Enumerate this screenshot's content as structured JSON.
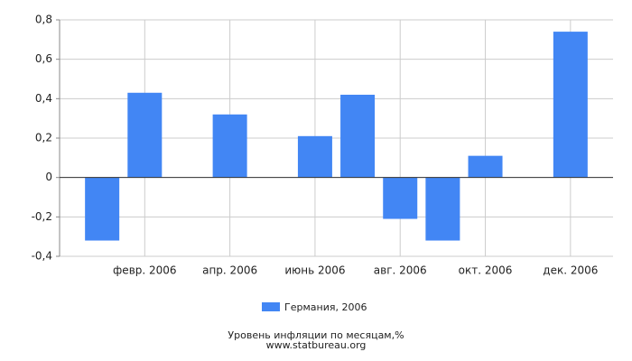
{
  "chart_data": {
    "type": "bar",
    "caption": "Уровень инфляции по месяцам,%",
    "source": "www.statbureau.org",
    "categories": [
      null,
      "февр. 2006",
      null,
      "апр. 2006",
      null,
      "июнь 2006",
      null,
      "авг. 2006",
      null,
      "окт. 2006",
      null,
      "дек. 2006"
    ],
    "series": [
      {
        "name": "Германия, 2006",
        "color": "#4286f4",
        "values": [
          -0.32,
          0.43,
          0,
          0.32,
          0,
          0.21,
          0.42,
          -0.21,
          -0.32,
          0.11,
          0,
          0.74
        ]
      }
    ],
    "ylim": [
      -0.4,
      0.8
    ],
    "yticks": [
      {
        "value": -0.4,
        "label": "-0,4"
      },
      {
        "value": -0.2,
        "label": "-0,2"
      },
      0,
      {
        "value": 0.2,
        "label": "0,2"
      },
      {
        "value": 0.4,
        "label": "0,4"
      },
      {
        "value": 0.6,
        "label": "0,6"
      },
      {
        "value": 0.8,
        "label": "0,8"
      }
    ],
    "grid": true
  }
}
